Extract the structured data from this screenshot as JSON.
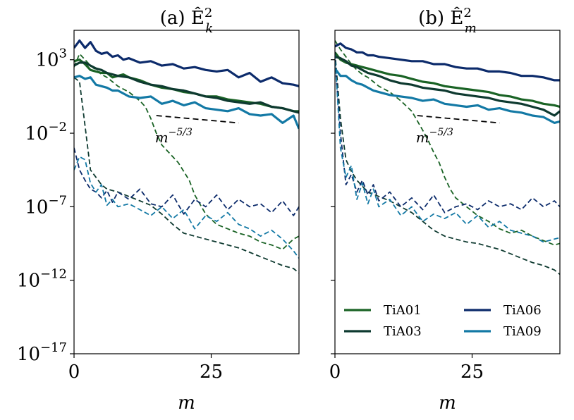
{
  "chart_data": [
    {
      "type": "line",
      "title": "(a) Ê_k^2",
      "title_main": "(a) Ê",
      "title_sub": "k",
      "title_sup": "2",
      "xlabel": "m",
      "ylabel": "",
      "xlim": [
        0,
        41
      ],
      "ylim_exp": [
        -17,
        5
      ],
      "yscale": "log",
      "x_ticks": [
        0,
        25
      ],
      "x_tick_labels": [
        "0",
        "25"
      ],
      "y_tick_exps": [
        3,
        -2,
        -7,
        -12,
        -17
      ],
      "y_tick_labels": [
        "10",
        "10",
        "10",
        "10",
        "10"
      ],
      "y_tick_sups": [
        "3",
        "−2",
        "−7",
        "−12",
        "−17"
      ],
      "reference_line": {
        "x": [
          15,
          30
        ],
        "log10y": [
          -0.8,
          -1.3
        ],
        "label": "m",
        "label_sup": "−5/3"
      },
      "series": [
        {
          "name": "TiA01",
          "color": "#1a6325",
          "style": "solid",
          "x": [
            0,
            1,
            2,
            3,
            4,
            5,
            6,
            7,
            8,
            9,
            10,
            12,
            14,
            16,
            18,
            20,
            22,
            24,
            26,
            28,
            30,
            32,
            34,
            36,
            38,
            40,
            41
          ],
          "log10y": [
            2.9,
            3.0,
            2.7,
            2.3,
            2.2,
            2.1,
            2.1,
            1.8,
            1.9,
            2.0,
            1.8,
            1.6,
            1.3,
            1.1,
            1.0,
            0.8,
            0.7,
            0.5,
            0.5,
            0.3,
            0.2,
            0.1,
            0.0,
            -0.2,
            -0.3,
            -0.5,
            -0.5
          ]
        },
        {
          "name": "TiA01",
          "color": "#1a6325",
          "style": "dashed",
          "x": [
            0,
            1,
            2,
            3,
            4,
            5,
            6,
            7,
            8,
            10,
            12,
            13,
            14,
            15,
            16,
            17,
            18,
            19,
            20,
            21,
            22,
            24,
            26,
            28,
            30,
            32,
            34,
            36,
            38,
            40,
            41
          ],
          "log10y": [
            2.5,
            3.4,
            3.0,
            2.6,
            2.3,
            2.0,
            1.8,
            1.5,
            1.2,
            0.8,
            0.2,
            -0.2,
            -1.0,
            -2.0,
            -2.8,
            -3.2,
            -3.6,
            -4.0,
            -4.6,
            -5.2,
            -6.2,
            -7.5,
            -8.2,
            -8.5,
            -8.8,
            -9.0,
            -9.4,
            -9.6,
            -9.9,
            -9.2,
            -9.0
          ]
        },
        {
          "name": "TiA03",
          "color": "#0e3a30",
          "style": "solid",
          "x": [
            0,
            1,
            2,
            3,
            4,
            5,
            6,
            7,
            8,
            10,
            12,
            14,
            16,
            18,
            20,
            22,
            24,
            26,
            28,
            30,
            32,
            34,
            36,
            38,
            40,
            41
          ],
          "log10y": [
            2.6,
            2.8,
            2.8,
            2.6,
            2.4,
            2.3,
            2.1,
            2.0,
            1.9,
            1.8,
            1.5,
            1.3,
            1.2,
            1.0,
            0.9,
            0.7,
            0.5,
            0.4,
            0.2,
            0.1,
            0.0,
            0.1,
            -0.2,
            -0.3,
            -0.5,
            -0.6
          ]
        },
        {
          "name": "TiA03",
          "color": "#0e3a30",
          "style": "dashed",
          "x": [
            0,
            1,
            2,
            3,
            4,
            5,
            6,
            8,
            10,
            12,
            14,
            16,
            18,
            20,
            22,
            24,
            26,
            28,
            30,
            32,
            34,
            36,
            38,
            40,
            41
          ],
          "log10y": [
            1.8,
            1.5,
            -1.5,
            -4.5,
            -5.0,
            -5.5,
            -5.8,
            -6.0,
            -6.3,
            -6.6,
            -6.9,
            -7.5,
            -8.2,
            -8.8,
            -9.0,
            -9.2,
            -9.4,
            -9.6,
            -9.8,
            -10.1,
            -10.4,
            -10.7,
            -11.0,
            -11.2,
            -11.5
          ]
        },
        {
          "name": "TiA06",
          "color": "#0c2b6b",
          "style": "solid",
          "x": [
            0,
            1,
            2,
            3,
            4,
            5,
            6,
            7,
            8,
            9,
            10,
            12,
            14,
            16,
            18,
            20,
            22,
            24,
            26,
            28,
            30,
            32,
            34,
            36,
            38,
            40,
            41
          ],
          "log10y": [
            3.8,
            4.3,
            3.8,
            4.2,
            3.6,
            3.4,
            3.5,
            3.2,
            3.3,
            3.0,
            3.1,
            2.8,
            2.9,
            2.6,
            2.7,
            2.4,
            2.5,
            2.3,
            2.2,
            2.3,
            1.8,
            2.1,
            1.5,
            1.8,
            1.4,
            1.3,
            1.2
          ]
        },
        {
          "name": "TiA06",
          "color": "#0c2b6b",
          "style": "dashed",
          "x": [
            0,
            1,
            2,
            3,
            4,
            5,
            6,
            7,
            8,
            10,
            12,
            14,
            16,
            18,
            20,
            22,
            24,
            26,
            28,
            30,
            32,
            34,
            36,
            38,
            40,
            41
          ],
          "log10y": [
            -3.0,
            -4.5,
            -5.2,
            -5.8,
            -6.0,
            -6.4,
            -5.9,
            -6.7,
            -6.0,
            -6.5,
            -5.8,
            -6.8,
            -7.0,
            -6.2,
            -7.5,
            -6.5,
            -7.0,
            -6.2,
            -7.2,
            -6.5,
            -7.0,
            -6.8,
            -7.4,
            -6.6,
            -7.6,
            -7.0
          ]
        },
        {
          "name": "TiA09",
          "color": "#1379a5",
          "style": "solid",
          "x": [
            0,
            1,
            2,
            3,
            4,
            5,
            6,
            7,
            8,
            10,
            12,
            14,
            16,
            18,
            20,
            22,
            24,
            26,
            28,
            30,
            32,
            34,
            36,
            38,
            40,
            41
          ],
          "log10y": [
            1.8,
            1.9,
            1.7,
            1.8,
            1.3,
            1.2,
            1.1,
            0.9,
            0.9,
            0.5,
            0.4,
            0.5,
            0.0,
            0.2,
            -0.1,
            0.1,
            -0.3,
            -0.4,
            -0.5,
            -0.3,
            -0.7,
            -0.8,
            -0.7,
            -1.3,
            -0.8,
            -1.7
          ]
        },
        {
          "name": "TiA09",
          "color": "#1379a5",
          "style": "dashed",
          "x": [
            0,
            1,
            2,
            3,
            4,
            5,
            6,
            7,
            8,
            10,
            12,
            14,
            16,
            18,
            20,
            22,
            24,
            26,
            28,
            30,
            32,
            34,
            36,
            38,
            40,
            41
          ],
          "log10y": [
            -4.5,
            -3.6,
            -3.8,
            -5.4,
            -6.0,
            -5.5,
            -6.9,
            -6.5,
            -7.0,
            -6.8,
            -7.2,
            -7.6,
            -7.0,
            -7.8,
            -7.2,
            -8.5,
            -7.6,
            -8.0,
            -7.4,
            -8.2,
            -8.5,
            -9.0,
            -8.6,
            -9.2,
            -10.0,
            -10.5
          ]
        }
      ]
    },
    {
      "type": "line",
      "title": "(b) Ê_m^2",
      "title_main": "(b) Ê",
      "title_sub": "m",
      "title_sup": "2",
      "xlabel": "m",
      "ylabel": "",
      "xlim": [
        0,
        41
      ],
      "ylim_exp": [
        -17,
        5
      ],
      "yscale": "log",
      "x_ticks": [
        0,
        25
      ],
      "x_tick_labels": [
        "0",
        "25"
      ],
      "reference_line": {
        "x": [
          15,
          30
        ],
        "log10y": [
          -0.8,
          -1.3
        ],
        "label": "m",
        "label_sup": "−5/3"
      },
      "legend": {
        "placement": "lower-right",
        "entries": [
          {
            "label": "TiA01",
            "color": "#1a6325"
          },
          {
            "label": "TiA06",
            "color": "#0c2b6b"
          },
          {
            "label": "TiA03",
            "color": "#0e3a30"
          },
          {
            "label": "TiA09",
            "color": "#1379a5"
          }
        ]
      },
      "series": [
        {
          "name": "TiA01",
          "color": "#1a6325",
          "style": "solid",
          "x": [
            0,
            1,
            2,
            3,
            4,
            5,
            6,
            7,
            8,
            10,
            12,
            14,
            16,
            18,
            20,
            22,
            24,
            26,
            28,
            30,
            32,
            34,
            36,
            38,
            40,
            41
          ],
          "log10y": [
            3.5,
            3.0,
            2.8,
            2.7,
            2.6,
            2.5,
            2.4,
            2.3,
            2.2,
            2.0,
            1.9,
            1.7,
            1.5,
            1.4,
            1.2,
            1.1,
            1.0,
            0.9,
            0.8,
            0.6,
            0.5,
            0.3,
            0.2,
            0.0,
            -0.1,
            -0.2
          ]
        },
        {
          "name": "TiA01",
          "color": "#1a6325",
          "style": "dashed",
          "x": [
            0,
            1,
            2,
            3,
            4,
            5,
            6,
            7,
            8,
            10,
            12,
            14,
            16,
            17,
            18,
            19,
            20,
            21,
            22,
            24,
            26,
            28,
            30,
            32,
            34,
            36,
            38,
            40,
            41
          ],
          "log10y": [
            4.3,
            3.7,
            3.2,
            2.7,
            2.3,
            2.0,
            1.8,
            1.5,
            1.2,
            0.8,
            0.2,
            -0.5,
            -1.8,
            -2.5,
            -3.3,
            -4.0,
            -5.0,
            -5.8,
            -6.4,
            -7.0,
            -7.6,
            -8.0,
            -8.5,
            -8.8,
            -8.6,
            -9.0,
            -9.3,
            -9.6,
            -9.5
          ]
        },
        {
          "name": "TiA03",
          "color": "#0e3a30",
          "style": "solid",
          "x": [
            0,
            1,
            2,
            3,
            4,
            5,
            6,
            7,
            8,
            10,
            12,
            14,
            16,
            18,
            20,
            22,
            24,
            26,
            28,
            30,
            32,
            34,
            36,
            38,
            40,
            41
          ],
          "log10y": [
            3.2,
            3.1,
            2.9,
            2.6,
            2.5,
            2.3,
            2.1,
            2.0,
            1.9,
            1.6,
            1.4,
            1.3,
            1.1,
            1.0,
            0.9,
            0.7,
            0.6,
            0.5,
            0.4,
            0.2,
            0.1,
            0.0,
            -0.2,
            -0.4,
            -0.8,
            -0.5
          ]
        },
        {
          "name": "TiA03",
          "color": "#0e3a30",
          "style": "dashed",
          "x": [
            0,
            1,
            2,
            3,
            4,
            5,
            6,
            8,
            10,
            12,
            14,
            16,
            18,
            20,
            22,
            24,
            26,
            28,
            30,
            32,
            34,
            36,
            38,
            40,
            41
          ],
          "log10y": [
            3.5,
            -1.0,
            -3.8,
            -4.6,
            -5.2,
            -5.6,
            -6.0,
            -6.3,
            -6.6,
            -7.0,
            -7.4,
            -8.0,
            -8.6,
            -9.0,
            -9.2,
            -9.4,
            -9.5,
            -9.7,
            -9.9,
            -10.2,
            -10.5,
            -10.8,
            -11.0,
            -11.3,
            -11.6
          ]
        },
        {
          "name": "TiA06",
          "color": "#0c2b6b",
          "style": "solid",
          "x": [
            0,
            1,
            2,
            3,
            4,
            5,
            6,
            7,
            8,
            10,
            12,
            14,
            16,
            18,
            20,
            22,
            24,
            26,
            28,
            30,
            32,
            34,
            36,
            38,
            40,
            41
          ],
          "log10y": [
            3.9,
            4.1,
            3.8,
            3.7,
            3.5,
            3.5,
            3.3,
            3.3,
            3.2,
            3.1,
            3.0,
            2.9,
            2.9,
            2.7,
            2.7,
            2.5,
            2.4,
            2.4,
            2.2,
            2.2,
            2.1,
            1.9,
            1.9,
            1.8,
            1.6,
            1.6
          ]
        },
        {
          "name": "TiA06",
          "color": "#0c2b6b",
          "style": "dashed",
          "x": [
            0,
            1,
            2,
            3,
            4,
            5,
            6,
            7,
            8,
            10,
            12,
            14,
            16,
            18,
            20,
            22,
            24,
            26,
            28,
            30,
            32,
            34,
            36,
            38,
            40,
            41
          ],
          "log10y": [
            3.0,
            -2.0,
            -5.5,
            -4.8,
            -6.0,
            -5.2,
            -6.2,
            -5.5,
            -6.6,
            -6.0,
            -7.0,
            -6.4,
            -7.2,
            -6.2,
            -7.4,
            -7.0,
            -6.8,
            -7.2,
            -6.6,
            -7.0,
            -6.8,
            -7.2,
            -6.4,
            -7.0,
            -6.6,
            -7.0
          ]
        },
        {
          "name": "TiA09",
          "color": "#1379a5",
          "style": "solid",
          "x": [
            0,
            1,
            2,
            3,
            4,
            5,
            6,
            7,
            8,
            10,
            12,
            14,
            16,
            18,
            20,
            22,
            24,
            26,
            28,
            30,
            32,
            34,
            36,
            38,
            40,
            41
          ],
          "log10y": [
            2.4,
            1.9,
            1.9,
            1.6,
            1.4,
            1.3,
            1.1,
            0.9,
            0.8,
            0.6,
            0.5,
            0.4,
            0.2,
            0.3,
            0.0,
            -0.1,
            -0.2,
            -0.1,
            -0.4,
            -0.3,
            -0.5,
            -0.6,
            -0.8,
            -0.9,
            -1.3,
            -1.2
          ]
        },
        {
          "name": "TiA09",
          "color": "#1379a5",
          "style": "dashed",
          "x": [
            0,
            1,
            2,
            3,
            4,
            5,
            6,
            7,
            8,
            10,
            12,
            14,
            16,
            18,
            20,
            22,
            24,
            26,
            28,
            30,
            32,
            34,
            36,
            38,
            40,
            41
          ],
          "log10y": [
            3.4,
            -3.0,
            -5.0,
            -4.2,
            -6.5,
            -5.4,
            -6.8,
            -5.8,
            -7.0,
            -6.5,
            -7.6,
            -7.0,
            -8.0,
            -7.5,
            -7.8,
            -7.4,
            -8.2,
            -7.6,
            -8.4,
            -8.0,
            -8.6,
            -8.8,
            -9.0,
            -9.4,
            -9.2,
            -9.1
          ]
        }
      ]
    }
  ]
}
